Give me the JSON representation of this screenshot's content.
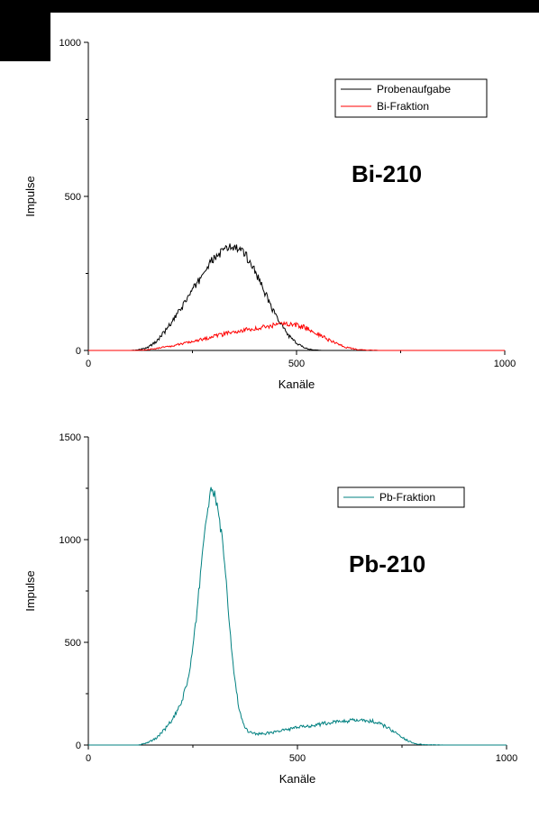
{
  "chart_data": [
    {
      "type": "line",
      "xlabel": "Kanäle",
      "ylabel": "Impulse",
      "xlim": [
        0,
        1000
      ],
      "ylim": [
        0,
        1000
      ],
      "xticks": [
        0,
        500,
        1000
      ],
      "yticks": [
        0,
        500,
        1000
      ],
      "grid": false,
      "legend_position": "top-right",
      "annotation": "Bi-210",
      "series": [
        {
          "name": "Probenaufgabe",
          "color": "#000000",
          "x": [
            0,
            100,
            120,
            140,
            160,
            180,
            200,
            220,
            240,
            260,
            280,
            300,
            320,
            340,
            360,
            380,
            400,
            420,
            440,
            460,
            480,
            500,
            520,
            540,
            560,
            580,
            600,
            700,
            800,
            900,
            1000
          ],
          "y": [
            0,
            0,
            2,
            8,
            25,
            55,
            90,
            130,
            175,
            215,
            260,
            295,
            320,
            335,
            330,
            305,
            260,
            200,
            140,
            90,
            50,
            22,
            8,
            2,
            0,
            0,
            0,
            0,
            0,
            0,
            0
          ]
        },
        {
          "name": "Bi-Fraktion",
          "color": "#ff0000",
          "x": [
            0,
            120,
            160,
            200,
            250,
            300,
            350,
            400,
            450,
            480,
            500,
            520,
            550,
            580,
            620,
            650,
            700,
            800,
            900,
            1000
          ],
          "y": [
            0,
            0,
            5,
            15,
            30,
            45,
            60,
            72,
            82,
            85,
            83,
            75,
            55,
            32,
            10,
            2,
            0,
            0,
            0,
            0
          ]
        }
      ]
    },
    {
      "type": "line",
      "xlabel": "Kanäle",
      "ylabel": "Impulse",
      "xlim": [
        0,
        1000
      ],
      "ylim": [
        0,
        1500
      ],
      "xticks": [
        0,
        500,
        1000
      ],
      "yticks": [
        0,
        500,
        1000,
        1500
      ],
      "grid": false,
      "legend_position": "top-right",
      "annotation": "Pb-210",
      "series": [
        {
          "name": "Pb-Fraktion",
          "color": "#008080",
          "x": [
            0,
            120,
            140,
            160,
            180,
            200,
            220,
            240,
            250,
            260,
            270,
            280,
            290,
            295,
            300,
            310,
            320,
            330,
            340,
            350,
            360,
            370,
            380,
            400,
            420,
            450,
            500,
            550,
            600,
            640,
            680,
            700,
            720,
            740,
            760,
            780,
            800,
            850,
            900,
            1000
          ],
          "y": [
            0,
            0,
            10,
            30,
            70,
            120,
            190,
            330,
            470,
            650,
            880,
            1080,
            1200,
            1250,
            1230,
            1150,
            1000,
            780,
            520,
            320,
            180,
            100,
            70,
            55,
            55,
            65,
            85,
            100,
            115,
            120,
            115,
            100,
            80,
            50,
            25,
            8,
            2,
            0,
            0,
            0
          ]
        }
      ]
    }
  ]
}
